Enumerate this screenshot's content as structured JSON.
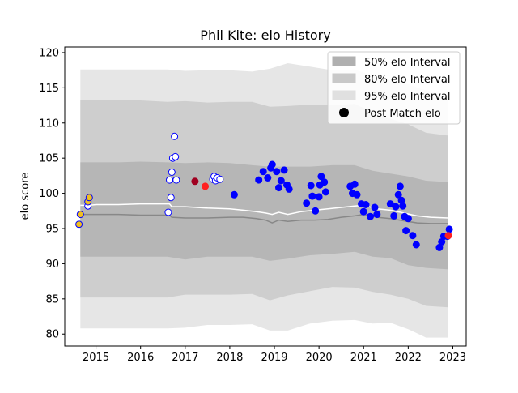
{
  "chart_data": {
    "type": "scatter",
    "title": "Phil Kite: elo History",
    "xlabel": "",
    "ylabel": "elo score",
    "xlim": [
      2014.3,
      2023.3
    ],
    "ylim": [
      78.3,
      120.8
    ],
    "x_ticks": [
      2015,
      2016,
      2017,
      2018,
      2019,
      2020,
      2021,
      2022,
      2023
    ],
    "y_ticks": [
      80,
      85,
      90,
      95,
      100,
      105,
      110,
      115,
      120
    ],
    "grid": false,
    "legend_position": "top-right",
    "legend": [
      {
        "label": "50% elo Interval",
        "kind": "band",
        "color": "#b0b0b0"
      },
      {
        "label": "80% elo Interval",
        "kind": "band",
        "color": "#c8c8c8"
      },
      {
        "label": "95% elo Interval",
        "kind": "band",
        "color": "#e0e0e0"
      },
      {
        "label": "Post Match elo",
        "kind": "marker",
        "color": "#000000"
      }
    ],
    "bands": {
      "x": [
        2014.65,
        2014.85,
        2015.5,
        2016.0,
        2016.6,
        2017.0,
        2017.5,
        2018.0,
        2018.5,
        2018.9,
        2019.3,
        2019.8,
        2020.3,
        2020.8,
        2021.2,
        2021.6,
        2022.0,
        2022.4,
        2022.9
      ],
      "p95_low": [
        80.8,
        80.8,
        80.8,
        80.8,
        80.8,
        80.9,
        81.3,
        81.3,
        81.4,
        80.5,
        80.5,
        81.5,
        81.9,
        82.0,
        81.5,
        81.6,
        80.7,
        79.5,
        79.5
      ],
      "p95_high": [
        117.6,
        117.6,
        117.6,
        117.6,
        117.6,
        117.4,
        117.5,
        117.5,
        117.3,
        117.7,
        118.5,
        118.0,
        117.5,
        117.6,
        116.7,
        116.0,
        115.5,
        114.6,
        113.9
      ],
      "p80_low": [
        85.2,
        85.2,
        85.2,
        85.2,
        85.2,
        85.6,
        85.6,
        85.6,
        85.7,
        84.8,
        85.5,
        86.1,
        86.7,
        86.6,
        86.0,
        85.6,
        85.0,
        84.0,
        83.8
      ],
      "p80_high": [
        113.2,
        113.2,
        113.2,
        113.2,
        113.0,
        113.1,
        112.9,
        113.0,
        113.0,
        112.3,
        112.4,
        112.6,
        112.5,
        112.7,
        111.5,
        110.6,
        109.8,
        108.6,
        108.2
      ],
      "p50_low": [
        91.0,
        91.0,
        91.0,
        91.0,
        91.0,
        90.6,
        91.0,
        91.0,
        91.0,
        90.4,
        90.7,
        91.2,
        91.4,
        91.7,
        91.0,
        90.8,
        89.8,
        89.4,
        89.2
      ],
      "p50_high": [
        104.4,
        104.4,
        104.4,
        104.5,
        104.4,
        104.3,
        104.4,
        104.3,
        104.0,
        103.8,
        103.8,
        103.8,
        104.0,
        104.0,
        103.2,
        102.8,
        102.4,
        101.8,
        101.6
      ]
    },
    "series": [
      {
        "kind": "median_line",
        "color": "#888888",
        "x": [
          2014.65,
          2014.85,
          2015.0,
          2015.5,
          2016.0,
          2016.5,
          2016.65,
          2016.7,
          2017.0,
          2017.5,
          2018.0,
          2018.3,
          2018.6,
          2018.8,
          2018.95,
          2019.1,
          2019.3,
          2019.6,
          2019.9,
          2020.2,
          2020.5,
          2020.8,
          2021.0,
          2021.3,
          2021.6,
          2021.9,
          2022.2,
          2022.5,
          2022.9
        ],
        "values": [
          97.0,
          97.0,
          97.0,
          97.0,
          96.9,
          96.9,
          96.9,
          96.6,
          96.5,
          96.5,
          96.6,
          96.6,
          96.4,
          96.2,
          95.8,
          96.2,
          96.0,
          96.2,
          96.2,
          96.3,
          96.6,
          96.8,
          97.0,
          96.6,
          96.4,
          96.1,
          95.8,
          95.7,
          95.7
        ]
      },
      {
        "kind": "mean_line",
        "color": "#ffffff",
        "x": [
          2014.65,
          2014.85,
          2015.0,
          2015.5,
          2016.0,
          2016.5,
          2016.65,
          2016.7,
          2017.0,
          2017.5,
          2018.0,
          2018.3,
          2018.6,
          2018.8,
          2018.95,
          2019.1,
          2019.3,
          2019.6,
          2019.9,
          2020.2,
          2020.5,
          2020.8,
          2021.0,
          2021.3,
          2021.6,
          2021.9,
          2022.2,
          2022.5,
          2022.9
        ],
        "values": [
          98.3,
          98.3,
          98.4,
          98.4,
          98.5,
          98.5,
          98.5,
          98.1,
          98.1,
          97.9,
          97.8,
          97.6,
          97.4,
          97.2,
          97.0,
          97.3,
          97.0,
          97.4,
          97.6,
          97.8,
          98.0,
          98.2,
          98.3,
          97.8,
          97.6,
          97.2,
          96.8,
          96.6,
          96.5
        ]
      },
      {
        "kind": "points",
        "style": "filled",
        "fill": "#0000ff",
        "edge": "#0000ff",
        "x": [
          2018.1,
          2018.65,
          2018.75,
          2018.85,
          2018.92,
          2018.95,
          2019.05,
          2019.1,
          2019.15,
          2019.22,
          2019.28,
          2019.33,
          2019.72,
          2019.82,
          2019.85,
          2019.92,
          2020.0,
          2020.02,
          2020.05,
          2020.12,
          2020.15,
          2020.7,
          2020.75,
          2020.8,
          2020.85,
          2020.95,
          2021.0,
          2021.05,
          2021.15,
          2021.25,
          2021.3,
          2021.6,
          2021.68,
          2021.72,
          2021.78,
          2021.82,
          2021.85,
          2021.88,
          2021.92,
          2021.95,
          2022.0,
          2022.1,
          2022.18,
          2022.7,
          2022.75,
          2022.8,
          2022.88,
          2022.92
        ],
        "values": [
          99.8,
          101.9,
          103.1,
          102.2,
          103.6,
          104.1,
          103.1,
          100.8,
          101.8,
          103.3,
          101.2,
          100.6,
          98.6,
          101.1,
          99.6,
          97.5,
          99.5,
          101.2,
          102.4,
          101.6,
          100.2,
          101.0,
          100.0,
          101.3,
          99.8,
          98.5,
          97.4,
          98.4,
          96.7,
          98.0,
          97.0,
          98.5,
          96.8,
          98.1,
          99.8,
          101.0,
          99.0,
          98.2,
          96.7,
          94.7,
          96.4,
          94.0,
          92.7,
          92.3,
          93.1,
          93.9,
          93.9,
          94.9
        ]
      },
      {
        "kind": "points",
        "style": "hollow",
        "fill": "#ffffff",
        "edge": "#0000ff",
        "x": [
          2014.82,
          2016.62,
          2016.65,
          2016.68,
          2016.7,
          2016.72,
          2016.76,
          2016.78,
          2016.8,
          2017.62,
          2017.65,
          2017.68,
          2017.72,
          2017.78
        ],
        "values": [
          98.2,
          97.3,
          101.9,
          99.4,
          103.0,
          105.0,
          108.1,
          105.2,
          101.9,
          102.0,
          102.4,
          101.8,
          102.2,
          102.0
        ]
      },
      {
        "kind": "points",
        "style": "gold",
        "fill": "#f0c020",
        "edge": "#0000ff",
        "x": [
          2014.62,
          2014.65,
          2014.82,
          2014.85
        ],
        "values": [
          95.6,
          97.0,
          98.8,
          99.4
        ]
      },
      {
        "kind": "points",
        "style": "red",
        "fill": "#ff2020",
        "edge": "#ff2020",
        "x": [
          2017.45,
          2022.9
        ],
        "values": [
          101.0,
          94.0
        ]
      },
      {
        "kind": "points",
        "style": "darkred",
        "fill": "#a00020",
        "edge": "#a00020",
        "x": [
          2017.22
        ],
        "values": [
          101.7
        ]
      }
    ]
  }
}
